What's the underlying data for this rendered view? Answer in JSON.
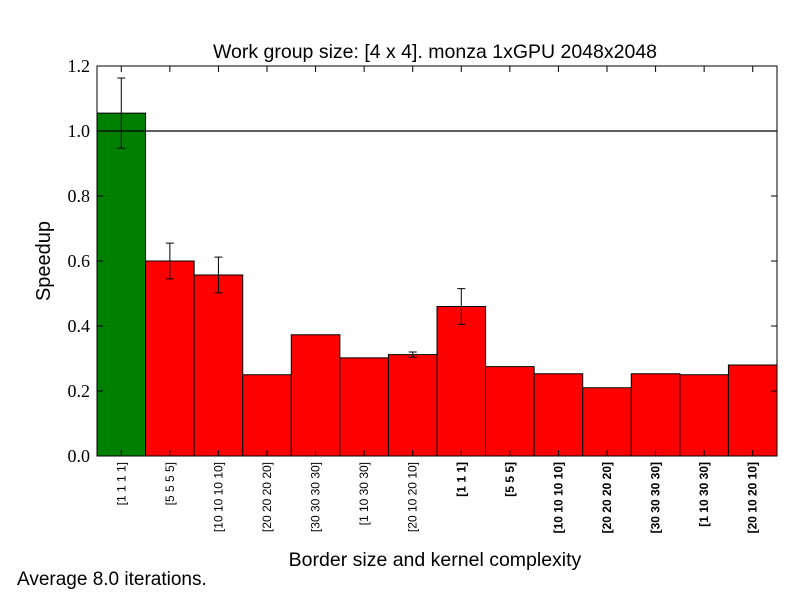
{
  "chart_data": {
    "type": "bar",
    "title": "Work group size: [4 x 4]. monza 1xGPU 2048x2048",
    "xlabel": "Border size and kernel complexity",
    "ylabel": "Speedup",
    "ylim": [
      0.0,
      1.2
    ],
    "yticks": [
      "0.0",
      "0.2",
      "0.4",
      "0.6",
      "0.8",
      "1.0",
      "1.2"
    ],
    "reference_line": 1.0,
    "categories": [
      "[1 1 1 1]",
      "[5 5 5 5]",
      "[10 10 10 10]",
      "[20 20 20 20]",
      "[30 30 30 30]",
      "[1 10 30 30]",
      "[20 10 20 10]",
      "[1 1 1]",
      "[5 5 5]",
      "[10 10 10 10]",
      "[20 20 20 20]",
      "[30 30 30 30]",
      "[1 10 30 30]",
      "[20 10 20 10]"
    ],
    "category_bold": [
      false,
      false,
      false,
      false,
      false,
      false,
      false,
      true,
      true,
      true,
      true,
      true,
      true,
      true
    ],
    "values": [
      1.055,
      0.6,
      0.557,
      0.25,
      0.373,
      0.302,
      0.312,
      0.46,
      0.275,
      0.253,
      0.21,
      0.253,
      0.25,
      0.28
    ],
    "errors": [
      0.108,
      0.055,
      0.055,
      0,
      0,
      0,
      0.008,
      0.055,
      0,
      0,
      0,
      0,
      0,
      0
    ],
    "colors": [
      "#008000",
      "#ff0000",
      "#ff0000",
      "#ff0000",
      "#ff0000",
      "#ff0000",
      "#ff0000",
      "#ff0000",
      "#ff0000",
      "#ff0000",
      "#ff0000",
      "#ff0000",
      "#ff0000",
      "#ff0000"
    ],
    "grid": false,
    "legend": "none"
  },
  "footnote": "Average 8.0 iterations."
}
